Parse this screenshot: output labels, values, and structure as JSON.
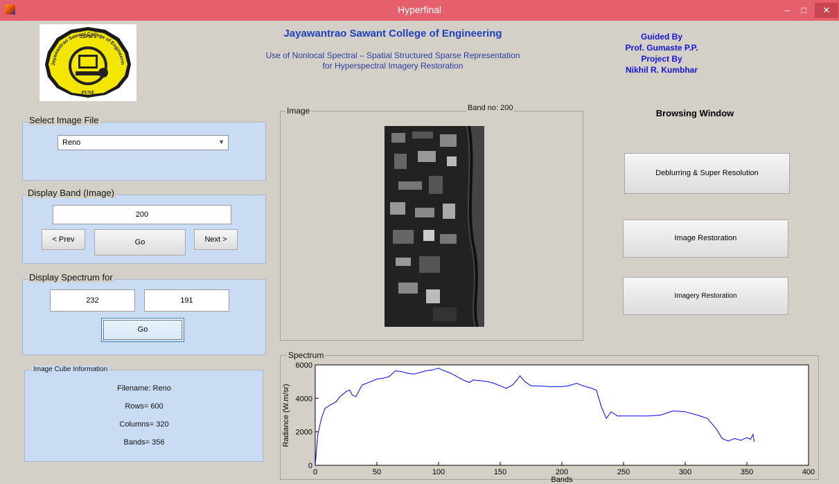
{
  "window": {
    "title": "Hyperfinal",
    "min": "–",
    "max": "□",
    "close": "✕"
  },
  "header": {
    "college": "Jayawantrao Sawant College of Engineering",
    "project_line1": "Use of Nonlocal Spectral – Spatial Structured Sparse Representation",
    "project_line2": "for Hyperspectral Imagery Restoration",
    "guided_by": "Guided By",
    "guide_name": "Prof. Gumaste P.P.",
    "project_by": "Project By",
    "student_name": "Nikhil R. Kumbhar"
  },
  "logo": {
    "top_text": "JSPM's",
    "arc_text": "Jayawantrao Sawant College of Engineering",
    "bottom_text": "PUNE"
  },
  "select_image": {
    "label": "Select Image File",
    "selected": "Reno"
  },
  "display_band": {
    "label": "Display Band (Image)",
    "value": "200",
    "prev": "< Prev",
    "go": "Go",
    "next": "Next >"
  },
  "display_spectrum": {
    "label": "Display Spectrum for",
    "x": "232",
    "y": "191",
    "go": "Go"
  },
  "cube_info": {
    "label": "Image Cube Information",
    "filename": "Filename: Reno",
    "rows": "Rows= 600",
    "columns": "Columns= 320",
    "bands": "Bands= 356"
  },
  "image_panel": {
    "label": "Image",
    "band_no": "Band no: 200"
  },
  "browsing": {
    "title": "Browsing Window",
    "btn1": "Deblurring & Super Resolution",
    "btn2": "Image Restoration",
    "btn3": "Imagery Restoration"
  },
  "spectrum_panel": {
    "label": "Spectrum"
  },
  "chart_data": {
    "type": "line",
    "xlabel": "Bands",
    "ylabel": "Radiance (W.m/sr)",
    "xlim": [
      0,
      400
    ],
    "ylim": [
      0,
      6000
    ],
    "xticks": [
      0,
      50,
      100,
      150,
      200,
      250,
      300,
      350,
      400
    ],
    "yticks": [
      0,
      2000,
      4000,
      6000
    ],
    "grid": false,
    "series": [
      {
        "color": "#0000ff",
        "points": [
          [
            0,
            0
          ],
          [
            2,
            1800
          ],
          [
            5,
            2800
          ],
          [
            8,
            3400
          ],
          [
            12,
            3600
          ],
          [
            17,
            3800
          ],
          [
            20,
            4100
          ],
          [
            25,
            4400
          ],
          [
            28,
            4500
          ],
          [
            30,
            4200
          ],
          [
            33,
            4100
          ],
          [
            38,
            4800
          ],
          [
            45,
            5000
          ],
          [
            50,
            5150
          ],
          [
            55,
            5200
          ],
          [
            60,
            5300
          ],
          [
            65,
            5650
          ],
          [
            70,
            5600
          ],
          [
            75,
            5500
          ],
          [
            80,
            5450
          ],
          [
            85,
            5550
          ],
          [
            90,
            5650
          ],
          [
            95,
            5700
          ],
          [
            100,
            5800
          ],
          [
            103,
            5700
          ],
          [
            110,
            5500
          ],
          [
            115,
            5300
          ],
          [
            120,
            5100
          ],
          [
            125,
            4950
          ],
          [
            128,
            5100
          ],
          [
            135,
            5050
          ],
          [
            140,
            5000
          ],
          [
            145,
            4900
          ],
          [
            150,
            4750
          ],
          [
            155,
            4600
          ],
          [
            160,
            4800
          ],
          [
            163,
            5050
          ],
          [
            166,
            5350
          ],
          [
            170,
            5000
          ],
          [
            175,
            4750
          ],
          [
            180,
            4750
          ],
          [
            190,
            4700
          ],
          [
            200,
            4700
          ],
          [
            205,
            4750
          ],
          [
            212,
            4900
          ],
          [
            217,
            4750
          ],
          [
            222,
            4650
          ],
          [
            228,
            4500
          ],
          [
            232,
            3500
          ],
          [
            236,
            2800
          ],
          [
            240,
            3200
          ],
          [
            245,
            2950
          ],
          [
            250,
            2950
          ],
          [
            260,
            2950
          ],
          [
            270,
            2950
          ],
          [
            280,
            3000
          ],
          [
            290,
            3250
          ],
          [
            300,
            3200
          ],
          [
            310,
            3000
          ],
          [
            318,
            2800
          ],
          [
            325,
            2200
          ],
          [
            330,
            1600
          ],
          [
            335,
            1450
          ],
          [
            340,
            1600
          ],
          [
            345,
            1500
          ],
          [
            350,
            1650
          ],
          [
            353,
            1550
          ],
          [
            355,
            1850
          ],
          [
            356,
            1400
          ]
        ]
      }
    ]
  }
}
